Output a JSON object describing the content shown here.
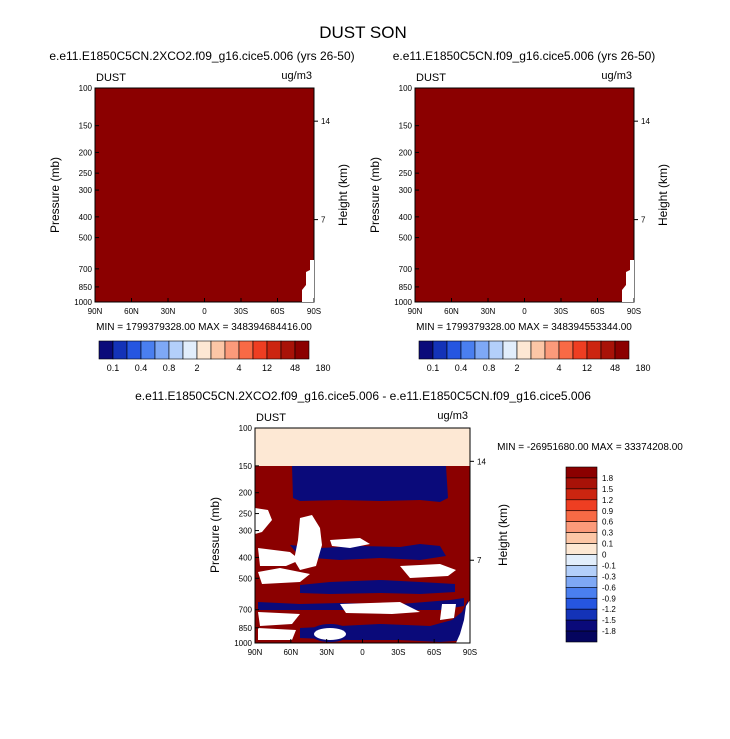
{
  "title": "DUST SON",
  "chart_data": [
    {
      "type": "heatmap",
      "title": "e.e11.E1850C5CN.2XCO2.f09_g16.cice5.006 (yrs 26-50)",
      "variable": "DUST",
      "units": "ug/m3",
      "xlabel": "",
      "ylabel": "Pressure (mb)",
      "y2label": "Height (km)",
      "x_ticks": [
        "90N",
        "60N",
        "30N",
        "0",
        "30S",
        "60S",
        "90S"
      ],
      "y_ticks": [
        100,
        150,
        200,
        250,
        300,
        400,
        500,
        700,
        850,
        1000
      ],
      "y2_ticks": [
        14,
        7
      ],
      "y_scale": "log",
      "ylim": [
        1000,
        100
      ],
      "stats": "MIN = 1799379328.00  MAX = 348394684416.00",
      "fill_color": "#8b0000"
    },
    {
      "type": "heatmap",
      "title": "e.e11.E1850C5CN.f09_g16.cice5.006 (yrs 26-50)",
      "variable": "DUST",
      "units": "ug/m3",
      "xlabel": "",
      "ylabel": "Pressure (mb)",
      "y2label": "Height (km)",
      "x_ticks": [
        "90N",
        "60N",
        "30N",
        "0",
        "30S",
        "60S",
        "90S"
      ],
      "y_ticks": [
        100,
        150,
        200,
        250,
        300,
        400,
        500,
        700,
        850,
        1000
      ],
      "y2_ticks": [
        14,
        7
      ],
      "y_scale": "log",
      "ylim": [
        1000,
        100
      ],
      "stats": "MIN = 1799379328.00  MAX = 348394553344.00",
      "fill_color": "#8b0000"
    },
    {
      "type": "heatmap",
      "title": "e.e11.E1850C5CN.2XCO2.f09_g16.cice5.006 - e.e11.E1850C5CN.f09_g16.cice5.006",
      "variable": "DUST",
      "units": "ug/m3",
      "xlabel": "",
      "ylabel": "Pressure (mb)",
      "y2label": "Height (km)",
      "x_ticks": [
        "90N",
        "60N",
        "30N",
        "0",
        "30S",
        "60S",
        "90S"
      ],
      "y_ticks": [
        100,
        150,
        200,
        250,
        300,
        400,
        500,
        700,
        850,
        1000
      ],
      "y2_ticks": [
        14,
        7
      ],
      "y_scale": "log",
      "ylim": [
        1000,
        100
      ],
      "stats": "MIN = -26951680.00  MAX = 33374208.00"
    }
  ],
  "colorbar_top": {
    "labels": [
      "0.1",
      "0.4",
      "0.8",
      "2",
      "4",
      "12",
      "48",
      "180"
    ],
    "colors": [
      "#0a0a7a",
      "#1433b8",
      "#2656e0",
      "#4a7ff0",
      "#7ea8f5",
      "#b3cffa",
      "#e2eefc",
      "#fde8d4",
      "#fcc6a6",
      "#fb9a7a",
      "#f86a45",
      "#ee3e22",
      "#cc2510",
      "#a81208",
      "#8b0000"
    ]
  },
  "colorbar_diff": {
    "labels": [
      "1.8",
      "1.5",
      "1.2",
      "0.9",
      "0.6",
      "0.3",
      "0.1",
      "0",
      "-0.1",
      "-0.3",
      "-0.6",
      "-0.9",
      "-1.2",
      "-1.5",
      "-1.8"
    ],
    "colors": [
      "#8b0000",
      "#a81208",
      "#cc2510",
      "#ee3e22",
      "#f86a45",
      "#fb9a7a",
      "#fcc6a6",
      "#fde8d4",
      "#e2eefc",
      "#b3cffa",
      "#7ea8f5",
      "#4a7ff0",
      "#2656e0",
      "#1433b8",
      "#0a0a7a",
      "#05055e"
    ]
  }
}
